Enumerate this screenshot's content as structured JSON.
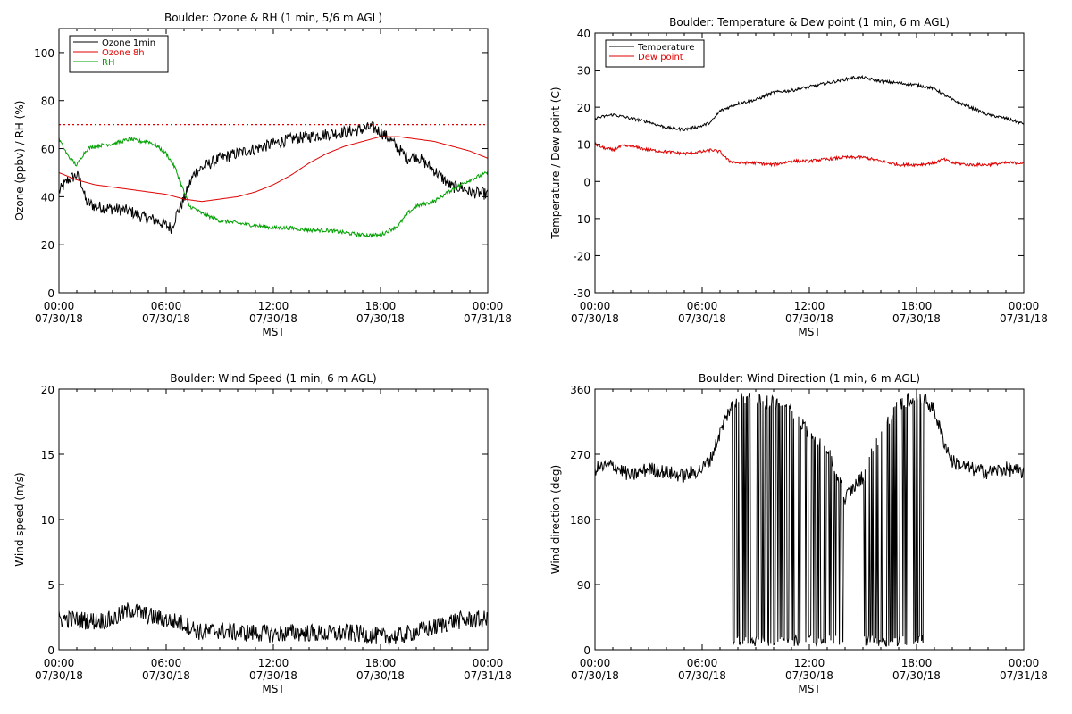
{
  "colors": {
    "ozone_1min": "#000000",
    "ozone_8h": "#e00000",
    "rh": "#00a000",
    "temperature": "#000000",
    "dew_point": "#e00000",
    "wind": "#000000"
  },
  "chart_data": [
    {
      "id": "ozone-rh",
      "type": "line",
      "title": "Boulder: Ozone & RH (1 min, 5/6 m AGL)",
      "xlabel": "MST",
      "ylabel": "Ozone (ppbv) / RH (%)",
      "xlim": [
        0,
        24
      ],
      "ylim": [
        0,
        110
      ],
      "yticks": [
        0,
        20,
        40,
        60,
        80,
        100
      ],
      "xtick_labels": [
        {
          "x": 0,
          "time": "00:00",
          "date": "07/30/18"
        },
        {
          "x": 6,
          "time": "06:00",
          "date": "07/30/18"
        },
        {
          "x": 12,
          "time": "12:00",
          "date": "07/30/18"
        },
        {
          "x": 18,
          "time": "18:00",
          "date": "07/30/18"
        },
        {
          "x": 24,
          "time": "00:00",
          "date": "07/31/18"
        }
      ],
      "legend": "top-left",
      "reference_lines": [
        {
          "y": 70,
          "style": "dotted",
          "color": "#e00000"
        }
      ],
      "series": [
        {
          "name": "Ozone 1min",
          "color": "#000000",
          "noise": 2.5,
          "x": [
            0,
            0.5,
            1,
            1.3,
            1.5,
            2,
            3,
            4,
            4.5,
            5,
            5.5,
            6,
            6.3,
            6.6,
            7,
            7.3,
            7.6,
            8,
            9,
            10,
            11,
            12,
            13,
            14,
            15,
            16,
            17,
            17.5,
            18,
            18.5,
            19,
            19.5,
            20,
            21,
            22,
            22.5,
            23,
            24
          ],
          "y": [
            42,
            47,
            49,
            45,
            38,
            36,
            35,
            34,
            32,
            31,
            30,
            28,
            27,
            33,
            39,
            45,
            50,
            52,
            56,
            58,
            60,
            62,
            64,
            65,
            66,
            67,
            68,
            69,
            67,
            64,
            60,
            56,
            57,
            51,
            44,
            44,
            42,
            41
          ]
        },
        {
          "name": "Ozone 8h",
          "color": "#e00000",
          "noise": 0,
          "x": [
            0,
            1,
            2,
            3,
            4,
            5,
            6,
            7,
            8,
            9,
            10,
            11,
            12,
            13,
            14,
            15,
            16,
            17,
            18,
            19,
            20,
            21,
            22,
            23,
            24
          ],
          "y": [
            50,
            47,
            45,
            44,
            43,
            42,
            41,
            39,
            38,
            39,
            40,
            42,
            45,
            49,
            54,
            58,
            61,
            63,
            65,
            65,
            64,
            63,
            61,
            59,
            56
          ]
        },
        {
          "name": "RH",
          "color": "#00a000",
          "noise": 0.8,
          "x": [
            0,
            0.5,
            1,
            1.3,
            1.6,
            2,
            3,
            4,
            4.5,
            5,
            5.5,
            6,
            6.5,
            7,
            7.3,
            7.6,
            8,
            9,
            10,
            11,
            12,
            13,
            14,
            15,
            16,
            17,
            18,
            18.5,
            19,
            19.5,
            20,
            21,
            22,
            23,
            24
          ],
          "y": [
            64,
            57,
            53,
            57,
            60,
            61,
            62,
            64,
            63,
            63,
            61,
            58,
            52,
            42,
            36,
            35,
            33,
            30,
            29,
            28,
            27,
            27,
            26,
            26,
            25,
            24,
            24,
            26,
            28,
            33,
            36,
            38,
            43,
            47,
            50
          ]
        }
      ]
    },
    {
      "id": "temp-dew",
      "type": "line",
      "title": "Boulder: Temperature & Dew point (1 min, 6 m AGL)",
      "xlabel": "MST",
      "ylabel": "Temperature / Dew point (C)",
      "xlim": [
        0,
        24
      ],
      "ylim": [
        -30,
        40
      ],
      "yticks": [
        -30,
        -20,
        -10,
        0,
        10,
        20,
        30,
        40
      ],
      "xtick_labels": [
        {
          "x": 0,
          "time": "00:00",
          "date": "07/30/18"
        },
        {
          "x": 6,
          "time": "06:00",
          "date": "07/30/18"
        },
        {
          "x": 12,
          "time": "12:00",
          "date": "07/30/18"
        },
        {
          "x": 18,
          "time": "18:00",
          "date": "07/30/18"
        },
        {
          "x": 24,
          "time": "00:00",
          "date": "07/31/18"
        }
      ],
      "legend": "top-left",
      "series": [
        {
          "name": "Temperature",
          "color": "#000000",
          "noise": 0.4,
          "x": [
            0,
            1,
            2,
            3,
            4,
            5,
            6,
            6.5,
            7,
            8,
            9,
            10,
            11,
            12,
            13,
            14,
            14.5,
            15,
            16,
            17,
            18,
            19,
            20,
            21,
            22,
            23,
            24
          ],
          "y": [
            17,
            18,
            17,
            16,
            14.5,
            14,
            15,
            16,
            19,
            21,
            22,
            24,
            24.5,
            25.5,
            26.5,
            27.5,
            28,
            28,
            27,
            26.5,
            26,
            25,
            22,
            20,
            18,
            17,
            15.5
          ]
        },
        {
          "name": "Dew point",
          "color": "#e00000",
          "noise": 0.4,
          "x": [
            0,
            0.5,
            1,
            1.5,
            2,
            3,
            4,
            5,
            6,
            6.5,
            7,
            7.5,
            8,
            9,
            10,
            11,
            12,
            13,
            14,
            15,
            16,
            17,
            18,
            19,
            19.5,
            20,
            21,
            22,
            23,
            24
          ],
          "y": [
            10,
            9,
            8.5,
            9.5,
            9.5,
            8.5,
            8,
            7.5,
            8,
            8.5,
            8,
            5.5,
            5,
            5,
            4.5,
            5.5,
            5.5,
            6,
            6.5,
            6.5,
            5.5,
            4.5,
            4.5,
            5,
            6,
            5,
            4.5,
            4.5,
            5,
            5
          ]
        }
      ]
    },
    {
      "id": "wind-speed",
      "type": "line",
      "title": "Boulder: Wind Speed (1 min, 6 m AGL)",
      "xlabel": "MST",
      "ylabel": "Wind speed (m/s)",
      "xlim": [
        0,
        24
      ],
      "ylim": [
        0,
        20
      ],
      "yticks": [
        0,
        5,
        10,
        15,
        20
      ],
      "xtick_labels": [
        {
          "x": 0,
          "time": "00:00",
          "date": "07/30/18"
        },
        {
          "x": 6,
          "time": "06:00",
          "date": "07/30/18"
        },
        {
          "x": 12,
          "time": "12:00",
          "date": "07/30/18"
        },
        {
          "x": 18,
          "time": "18:00",
          "date": "07/30/18"
        },
        {
          "x": 24,
          "time": "00:00",
          "date": "07/31/18"
        }
      ],
      "series": [
        {
          "name": "",
          "color": "#000000",
          "noise": 0.7,
          "x": [
            0,
            2,
            3,
            4,
            5,
            6,
            7,
            8,
            9,
            10,
            11,
            12,
            13,
            14,
            15,
            16,
            17,
            18,
            19,
            20,
            21,
            22,
            23,
            24
          ],
          "y": [
            2.4,
            2.2,
            2.3,
            3.1,
            2.6,
            2.3,
            2,
            1.3,
            1.5,
            1.3,
            1.3,
            1.2,
            1.3,
            1.3,
            1.2,
            1.3,
            1.2,
            1,
            1,
            1.4,
            1.7,
            2.2,
            2.3,
            2.3
          ]
        }
      ]
    },
    {
      "id": "wind-dir",
      "type": "line",
      "title": "Boulder: Wind Direction (1 min, 6 m AGL)",
      "xlabel": "MST",
      "ylabel": "Wind direction (deg)",
      "xlim": [
        0,
        24
      ],
      "ylim": [
        0,
        360
      ],
      "yticks": [
        0,
        90,
        180,
        270,
        360
      ],
      "xtick_labels": [
        {
          "x": 0,
          "time": "00:00",
          "date": "07/30/18"
        },
        {
          "x": 6,
          "time": "06:00",
          "date": "07/30/18"
        },
        {
          "x": 12,
          "time": "12:00",
          "date": "07/30/18"
        },
        {
          "x": 18,
          "time": "18:00",
          "date": "07/30/18"
        },
        {
          "x": 24,
          "time": "00:00",
          "date": "07/31/18"
        }
      ],
      "series": [
        {
          "name": "",
          "color": "#000000",
          "noise": 10,
          "x": [
            0,
            1,
            2,
            3,
            4,
            5,
            6,
            6.5,
            7,
            7.5,
            8,
            9,
            10,
            11,
            12,
            13,
            14,
            15,
            16,
            17,
            18,
            18.5,
            19,
            19.5,
            20,
            21,
            22,
            23,
            24
          ],
          "y": [
            250,
            255,
            240,
            250,
            245,
            240,
            250,
            265,
            300,
            330,
            350,
            345,
            340,
            330,
            300,
            280,
            210,
            240,
            300,
            340,
            350,
            345,
            330,
            290,
            260,
            250,
            245,
            250,
            245
          ]
        }
      ],
      "wrap_spans_hours": [
        [
          7.7,
          14
        ],
        [
          14.9,
          18.4
        ]
      ]
    }
  ]
}
